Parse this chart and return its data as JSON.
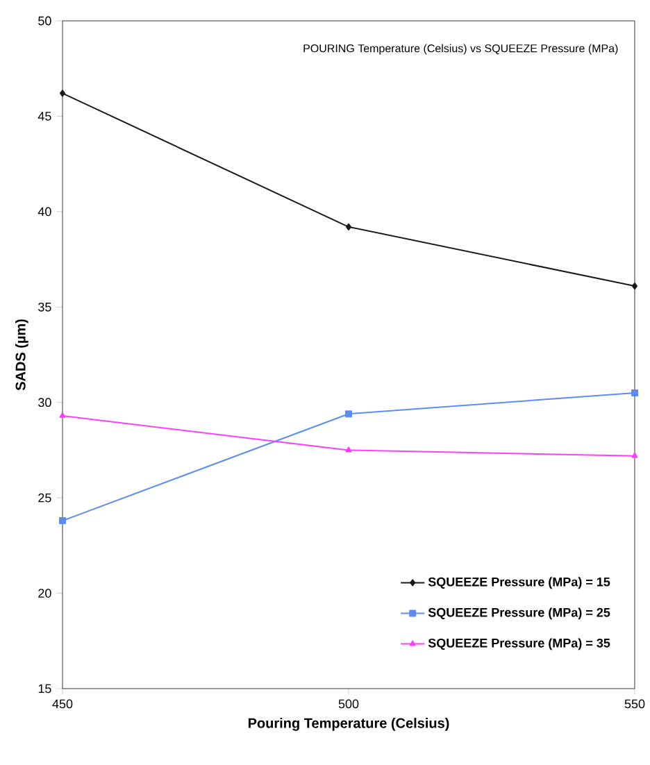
{
  "chart_data": {
    "type": "line",
    "title": "POURING Temperature (Celsius) vs SQUEEZE Pressure (MPa)",
    "xlabel": "Pouring Temperature (Celsius)",
    "ylabel": "SADS (µm)",
    "x": [
      450,
      500,
      550
    ],
    "xlim": [
      450,
      550
    ],
    "xticks": [
      450,
      500,
      550
    ],
    "ylim": [
      15,
      50
    ],
    "yticks": [
      15,
      20,
      25,
      30,
      35,
      40,
      45,
      50
    ],
    "legend": "bottom right",
    "grid": false,
    "line_style": "solid",
    "series": [
      {
        "name": "SQUEEZE Pressure (MPa) = 15",
        "color": "#1a1a1a",
        "marker": "diamond",
        "values": [
          46.2,
          39.2,
          36.1
        ]
      },
      {
        "name": "SQUEEZE Pressure (MPa) = 25",
        "color": "#5b8cf5",
        "marker": "square",
        "values": [
          23.8,
          29.4,
          30.5
        ]
      },
      {
        "name": "SQUEEZE Pressure (MPa) = 35",
        "color": "#ff3dff",
        "marker": "triangle",
        "values": [
          29.3,
          27.5,
          27.2
        ]
      }
    ]
  }
}
